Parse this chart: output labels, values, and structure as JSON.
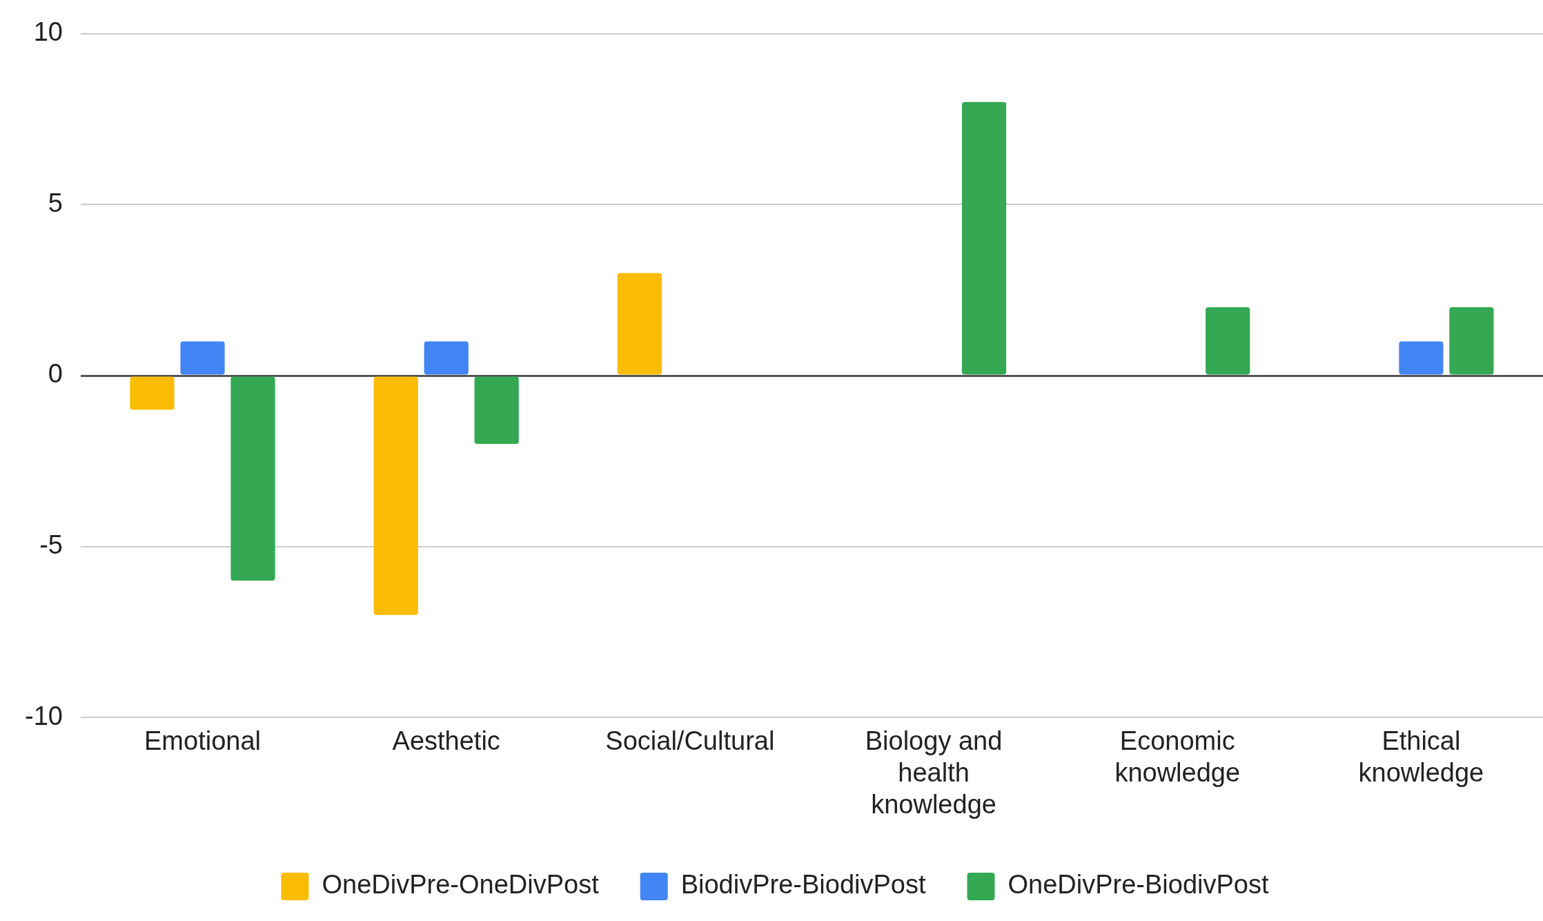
{
  "chart_data": {
    "type": "bar",
    "categories": [
      "Emotional",
      "Aesthetic",
      "Social/Cultural",
      "Biology and health knowledge",
      "Economic knowledge",
      "Ethical knowledge"
    ],
    "series": [
      {
        "name": "OneDivPre-OneDivPost",
        "color": "#fbbc04",
        "values": [
          -1,
          -7,
          3,
          0,
          0,
          0
        ]
      },
      {
        "name": "BiodivPre-BiodivPost",
        "color": "#4285f4",
        "values": [
          1,
          1,
          0,
          0,
          0,
          1
        ]
      },
      {
        "name": "OneDivPre-BiodivPost",
        "color": "#34a853",
        "values": [
          -6,
          -2,
          0,
          8,
          2,
          2
        ]
      }
    ],
    "ylim": [
      -10,
      10
    ],
    "yticks": [
      -10,
      -5,
      0,
      5,
      10
    ],
    "grid": "y",
    "legend": "bottom"
  }
}
